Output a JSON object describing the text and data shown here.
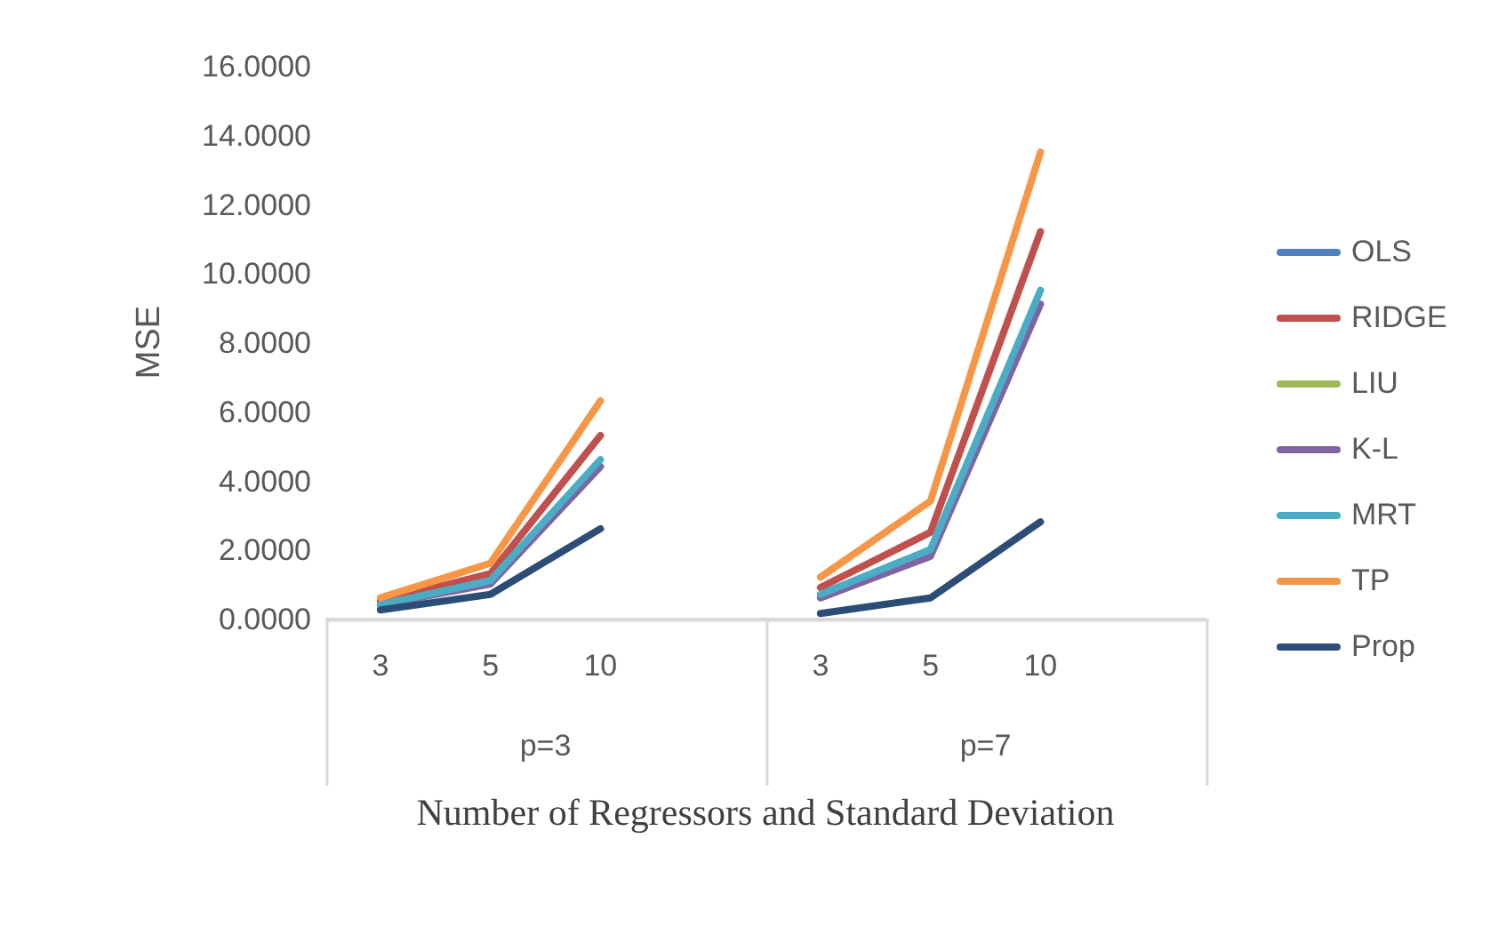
{
  "chart_data": {
    "type": "line",
    "xlabel": "Number of Regressors and Standard Deviation",
    "ylabel": "MSE",
    "categories": [
      "3",
      "5",
      "10",
      null,
      "3",
      "5",
      "10",
      null
    ],
    "series": [
      {
        "name": "OLS",
        "color": "#4f81bd",
        "values": [
          null,
          null,
          null,
          null,
          null,
          null,
          null,
          null
        ]
      },
      {
        "name": "RIDGE",
        "color": "#c0504d",
        "values": [
          0.5,
          1.3,
          5.3,
          null,
          0.9,
          2.5,
          11.2,
          null
        ]
      },
      {
        "name": "LIU",
        "color": "#9bbb59",
        "values": [
          null,
          null,
          null,
          null,
          null,
          null,
          null,
          null
        ]
      },
      {
        "name": "K-L",
        "color": "#8064a2",
        "values": [
          0.4,
          1.0,
          4.4,
          null,
          0.6,
          1.8,
          9.1,
          null
        ]
      },
      {
        "name": "MRT",
        "color": "#4bacc6",
        "values": [
          0.4,
          1.1,
          4.6,
          null,
          0.7,
          2.0,
          9.5,
          null
        ]
      },
      {
        "name": "TP",
        "color": "#f79646",
        "values": [
          0.6,
          1.6,
          6.3,
          null,
          1.2,
          3.4,
          13.5,
          null
        ]
      },
      {
        "name": "Prop",
        "color": "#2c4d75",
        "values": [
          0.25,
          0.7,
          2.6,
          null,
          0.15,
          0.6,
          2.8,
          null
        ]
      }
    ],
    "annotations": [
      "p=3",
      "p=7"
    ],
    "ylim": [
      0,
      16
    ],
    "yticks": [
      {
        "value": 0,
        "label": "0.0000"
      },
      {
        "value": 2,
        "label": "2.0000"
      },
      {
        "value": 4,
        "label": "4.0000"
      },
      {
        "value": 6,
        "label": "6.0000"
      },
      {
        "value": 8,
        "label": "8.0000"
      },
      {
        "value": 10,
        "label": "10.0000"
      },
      {
        "value": 12,
        "label": "12.0000"
      },
      {
        "value": 14,
        "label": "14.0000"
      },
      {
        "value": 16,
        "label": "16.0000"
      }
    ],
    "grid": false,
    "legend": "right",
    "marker": "none",
    "line_style": "solid"
  }
}
